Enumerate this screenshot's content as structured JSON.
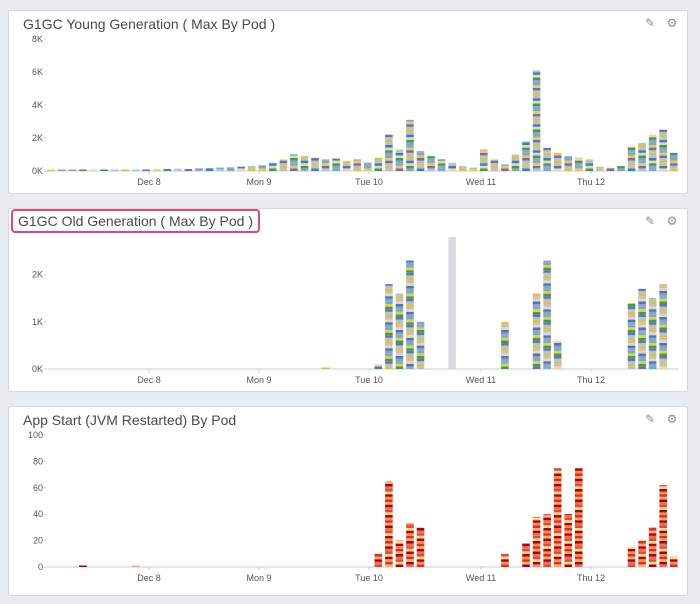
{
  "panels": [
    {
      "title": "G1GC Young Generation ( Max By Pod )",
      "highlighted": false,
      "tools": {
        "edit_icon": "pencil-icon",
        "settings_icon": "gear-icon"
      }
    },
    {
      "title": "G1GC Old Generation ( Max By Pod )",
      "highlighted": true,
      "tools": {
        "edit_icon": "pencil-icon",
        "settings_icon": "gear-icon"
      }
    },
    {
      "title": "App Start (JVM Restarted) By Pod",
      "highlighted": false,
      "tools": {
        "edit_icon": "pencil-icon",
        "settings_icon": "gear-icon"
      }
    }
  ],
  "chart_data": [
    {
      "type": "bar",
      "title": "G1GC Young Generation ( Max By Pod )",
      "x_tick_labels": [
        "Dec 8",
        "Mon 9",
        "Tue 10",
        "Wed 11",
        "Thu 12"
      ],
      "y_tick_labels": [
        "0K",
        "2K",
        "4K",
        "6K",
        "8K"
      ],
      "ylim": [
        0,
        8000
      ],
      "palette": [
        "#f5c842",
        "#6baed6",
        "#9e9ac8",
        "#31a354",
        "#fdd0a2",
        "#3182bd",
        "#bcbddc",
        "#e6c229",
        "#9ecae1",
        "#756bb1"
      ],
      "stacked": true,
      "x": [
        0,
        1,
        2,
        3,
        4,
        5,
        6,
        7,
        8,
        9,
        10,
        11,
        12,
        13,
        14,
        15,
        16,
        17,
        18,
        19,
        20,
        21,
        22,
        23,
        24,
        25,
        26,
        27,
        28,
        29,
        30,
        31,
        32,
        33,
        34,
        35,
        36,
        37,
        38,
        39,
        40,
        41,
        42,
        43,
        44,
        45,
        46,
        47,
        48,
        49,
        50,
        51,
        52,
        53,
        54,
        55,
        56,
        57,
        58,
        59
      ],
      "values": [
        50,
        80,
        60,
        40,
        90,
        70,
        60,
        50,
        80,
        60,
        100,
        120,
        140,
        120,
        160,
        180,
        200,
        220,
        260,
        300,
        350,
        500,
        700,
        1000,
        900,
        800,
        700,
        750,
        600,
        700,
        500,
        800,
        2200,
        1300,
        3100,
        1200,
        900,
        700,
        500,
        300,
        200,
        1300,
        700,
        400,
        1000,
        1800,
        6100,
        1400,
        1100,
        900,
        800,
        700,
        250,
        200,
        300,
        1500,
        1700,
        2200,
        2500,
        1100
      ]
    },
    {
      "type": "bar",
      "title": "G1GC Old Generation ( Max By Pod )",
      "x_tick_labels": [
        "Dec 8",
        "Mon 9",
        "Tue 10",
        "Wed 11",
        "Thu 12"
      ],
      "y_tick_labels": [
        "0K",
        "1K",
        "2K"
      ],
      "ylim": [
        0,
        2800
      ],
      "palette": [
        "#f5c842",
        "#6baed6",
        "#9e9ac8",
        "#3182bd",
        "#fdd0a2",
        "#bcbddc",
        "#e6c229",
        "#9ecae1",
        "#756bb1",
        "#31a354"
      ],
      "stacked": true,
      "x": [
        0,
        1,
        2,
        3,
        4,
        5,
        6,
        7,
        8,
        9,
        10,
        11,
        12,
        13,
        14,
        15,
        16,
        17,
        18,
        19,
        20,
        21,
        22,
        23,
        24,
        25,
        26,
        27,
        28,
        29,
        30,
        31,
        32,
        33,
        34,
        35,
        36,
        37,
        38,
        39,
        40,
        41,
        42,
        43,
        44,
        45,
        46,
        47,
        48,
        49,
        50,
        51,
        52,
        53,
        54,
        55,
        56,
        57,
        58,
        59
      ],
      "values": [
        0,
        0,
        0,
        0,
        0,
        0,
        0,
        0,
        0,
        0,
        0,
        0,
        0,
        0,
        0,
        0,
        0,
        0,
        0,
        0,
        0,
        0,
        0,
        0,
        0,
        0,
        20,
        0,
        0,
        0,
        0,
        100,
        1800,
        1600,
        2300,
        1000,
        0,
        0,
        0,
        0,
        0,
        0,
        0,
        1000,
        0,
        0,
        1600,
        2300,
        600,
        0,
        0,
        0,
        0,
        0,
        0,
        1400,
        1700,
        1500,
        1800,
        0
      ],
      "highlight_band_x": 38
    },
    {
      "type": "bar",
      "title": "App Start (JVM Restarted) By Pod",
      "x_tick_labels": [
        "Dec 8",
        "Mon 9",
        "Tue 10",
        "Wed 11",
        "Thu 12"
      ],
      "y_tick_labels": [
        "0",
        "20",
        "40",
        "60",
        "80",
        "100"
      ],
      "ylim": [
        0,
        100
      ],
      "palette": [
        "#fdae61",
        "#d7301f",
        "#fc8d59",
        "#b30000",
        "#fee08b",
        "#e34a33",
        "#f46d43",
        "#a50026"
      ],
      "stacked": true,
      "x": [
        0,
        1,
        2,
        3,
        4,
        5,
        6,
        7,
        8,
        9,
        10,
        11,
        12,
        13,
        14,
        15,
        16,
        17,
        18,
        19,
        20,
        21,
        22,
        23,
        24,
        25,
        26,
        27,
        28,
        29,
        30,
        31,
        32,
        33,
        34,
        35,
        36,
        37,
        38,
        39,
        40,
        41,
        42,
        43,
        44,
        45,
        46,
        47,
        48,
        49,
        50,
        51,
        52,
        53,
        54,
        55,
        56,
        57,
        58,
        59
      ],
      "values": [
        0,
        0,
        0,
        1,
        0,
        0,
        0,
        0,
        1,
        0,
        0,
        0,
        0,
        0,
        0,
        0,
        0,
        0,
        0,
        0,
        0,
        0,
        0,
        0,
        0,
        0,
        0,
        0,
        0,
        0,
        0,
        10,
        65,
        20,
        33,
        30,
        0,
        0,
        0,
        0,
        0,
        0,
        0,
        10,
        0,
        18,
        38,
        40,
        75,
        40,
        75,
        0,
        0,
        0,
        0,
        15,
        20,
        30,
        62,
        8
      ]
    }
  ]
}
